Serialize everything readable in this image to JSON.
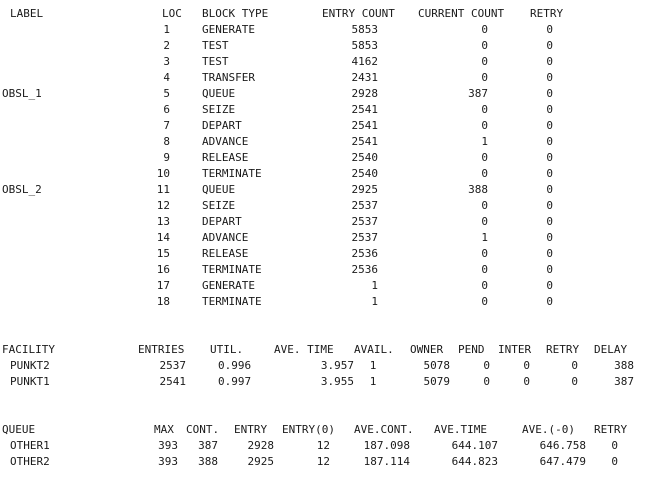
{
  "blocks_header": {
    "label": "LABEL",
    "loc": "LOC",
    "block_type": "BLOCK TYPE",
    "entry_count": "ENTRY COUNT",
    "current_count": "CURRENT COUNT",
    "retry": "RETRY"
  },
  "blocks": [
    {
      "label": "",
      "loc": "1",
      "type": "GENERATE",
      "entry": "5853",
      "current": "0",
      "retry": "0"
    },
    {
      "label": "",
      "loc": "2",
      "type": "TEST",
      "entry": "5853",
      "current": "0",
      "retry": "0"
    },
    {
      "label": "",
      "loc": "3",
      "type": "TEST",
      "entry": "4162",
      "current": "0",
      "retry": "0"
    },
    {
      "label": "",
      "loc": "4",
      "type": "TRANSFER",
      "entry": "2431",
      "current": "0",
      "retry": "0"
    },
    {
      "label": "OBSL_1",
      "loc": "5",
      "type": "QUEUE",
      "entry": "2928",
      "current": "387",
      "retry": "0"
    },
    {
      "label": "",
      "loc": "6",
      "type": "SEIZE",
      "entry": "2541",
      "current": "0",
      "retry": "0"
    },
    {
      "label": "",
      "loc": "7",
      "type": "DEPART",
      "entry": "2541",
      "current": "0",
      "retry": "0"
    },
    {
      "label": "",
      "loc": "8",
      "type": "ADVANCE",
      "entry": "2541",
      "current": "1",
      "retry": "0"
    },
    {
      "label": "",
      "loc": "9",
      "type": "RELEASE",
      "entry": "2540",
      "current": "0",
      "retry": "0"
    },
    {
      "label": "",
      "loc": "10",
      "type": "TERMINATE",
      "entry": "2540",
      "current": "0",
      "retry": "0"
    },
    {
      "label": "OBSL_2",
      "loc": "11",
      "type": "QUEUE",
      "entry": "2925",
      "current": "388",
      "retry": "0"
    },
    {
      "label": "",
      "loc": "12",
      "type": "SEIZE",
      "entry": "2537",
      "current": "0",
      "retry": "0"
    },
    {
      "label": "",
      "loc": "13",
      "type": "DEPART",
      "entry": "2537",
      "current": "0",
      "retry": "0"
    },
    {
      "label": "",
      "loc": "14",
      "type": "ADVANCE",
      "entry": "2537",
      "current": "1",
      "retry": "0"
    },
    {
      "label": "",
      "loc": "15",
      "type": "RELEASE",
      "entry": "2536",
      "current": "0",
      "retry": "0"
    },
    {
      "label": "",
      "loc": "16",
      "type": "TERMINATE",
      "entry": "2536",
      "current": "0",
      "retry": "0"
    },
    {
      "label": "",
      "loc": "17",
      "type": "GENERATE",
      "entry": "1",
      "current": "0",
      "retry": "0"
    },
    {
      "label": "",
      "loc": "18",
      "type": "TERMINATE",
      "entry": "1",
      "current": "0",
      "retry": "0"
    }
  ],
  "facility_header": {
    "facility": "FACILITY",
    "entries": "ENTRIES",
    "util": "UTIL.",
    "ave_time": "AVE. TIME",
    "avail": "AVAIL.",
    "owner": "OWNER",
    "pend": "PEND",
    "inter": "INTER",
    "retry": "RETRY",
    "delay": "DELAY"
  },
  "facilities": [
    {
      "name": "PUNKT2",
      "entries": "2537",
      "util": "0.996",
      "ave_time": "3.957",
      "avail": "1",
      "owner": "5078",
      "pend": "0",
      "inter": "0",
      "retry": "0",
      "delay": "388"
    },
    {
      "name": "PUNKT1",
      "entries": "2541",
      "util": "0.997",
      "ave_time": "3.955",
      "avail": "1",
      "owner": "5079",
      "pend": "0",
      "inter": "0",
      "retry": "0",
      "delay": "387"
    }
  ],
  "queue_header": {
    "queue": "QUEUE",
    "max": "MAX",
    "cont": "CONT.",
    "entry": "ENTRY",
    "entry0": "ENTRY(0)",
    "ave_cont": "AVE.CONT.",
    "ave_time": "AVE.TIME",
    "ave_minus0": "AVE.(-0)",
    "retry": "RETRY"
  },
  "queues": [
    {
      "name": "OTHER1",
      "max": "393",
      "cont": "387",
      "entry": "2928",
      "entry0": "12",
      "ave_cont": "187.098",
      "ave_time": "644.107",
      "ave_minus0": "646.758",
      "retry": "0"
    },
    {
      "name": "OTHER2",
      "max": "393",
      "cont": "388",
      "entry": "2925",
      "entry0": "12",
      "ave_cont": "187.114",
      "ave_time": "644.823",
      "ave_minus0": "647.479",
      "retry": "0"
    }
  ]
}
